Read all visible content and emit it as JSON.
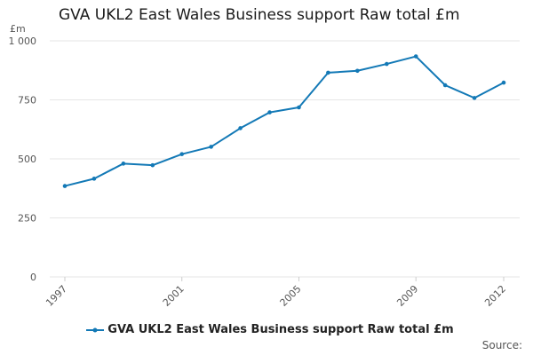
{
  "title": "GVA UKL2 East Wales Business support Raw total £m",
  "source_label": "Source:",
  "y_unit": "£m",
  "colors": {
    "series": "#1379b6",
    "grid": "#e6e6e6",
    "axis_text": "#555555"
  },
  "chart_data": {
    "type": "line",
    "title": "GVA UKL2 East Wales Business support Raw total £m",
    "xlabel": "",
    "ylabel": "£m",
    "x": [
      1997,
      1998,
      1999,
      2000,
      2001,
      2002,
      2003,
      2004,
      2005,
      2006,
      2007,
      2008,
      2009,
      2010,
      2011,
      2012
    ],
    "x_tick_labels": [
      "1997",
      "2001",
      "2005",
      "2009",
      "2012"
    ],
    "y_ticks": [
      0,
      250,
      500,
      750,
      1000
    ],
    "y_tick_labels": [
      "0",
      "250",
      "500",
      "750",
      "1 000"
    ],
    "ylim": [
      0,
      1000
    ],
    "grid": true,
    "legend_position": "bottom",
    "series": [
      {
        "name": "GVA UKL2 East Wales Business support Raw total £m",
        "values": [
          385,
          416,
          480,
          473,
          520,
          551,
          630,
          697,
          718,
          865,
          873,
          902,
          934,
          812,
          758,
          823
        ]
      }
    ]
  }
}
